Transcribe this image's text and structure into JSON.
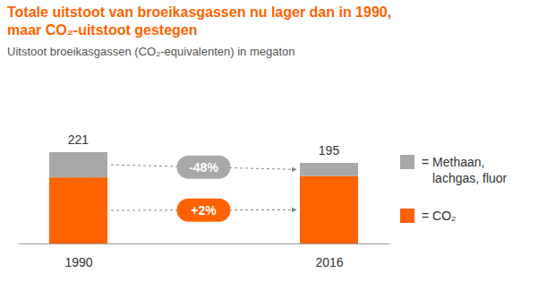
{
  "chart_data": {
    "type": "bar",
    "stacked": true,
    "title": "Totale uitstoot van broeikasgassen nu lager dan in 1990,\nmaar CO₂-uitstoot gestegen",
    "subtitle": "Uitstoot broeikasgassen (CO₂-equivalenten) in megaton",
    "categories": [
      "1990",
      "2016"
    ],
    "series": [
      {
        "name": "= CO₂",
        "color": "#ff6200",
        "values": [
          160,
          163
        ],
        "annotation": "+2%"
      },
      {
        "name": "= Methaan, lachgas, fluor",
        "color": "#a8a8a8",
        "values": [
          61,
          32
        ],
        "annotation": "-48%"
      }
    ],
    "totals": [
      221,
      195
    ],
    "ylim": [
      0,
      221
    ],
    "tick_labels": "x",
    "grid": false,
    "legend": "right"
  }
}
